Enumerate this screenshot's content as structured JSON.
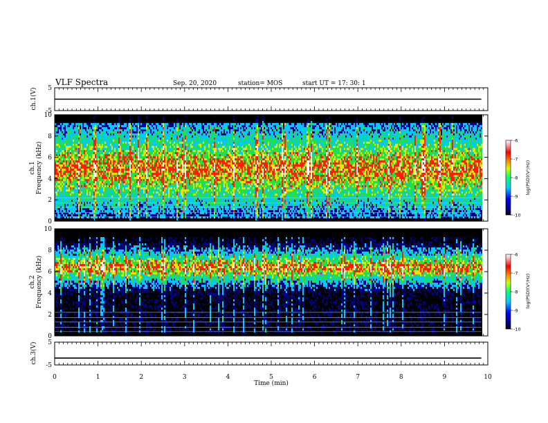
{
  "header": {
    "title": "VLF Spectra",
    "date": "Sep. 20, 2020",
    "station": "station= MOS",
    "start_ut": "start  UT  =   17: 30: 1"
  },
  "colors": {
    "spectrum_low": "#00008c",
    "spectrum_mid": "#00c8ff",
    "spectrum_green": "#22e046",
    "spectrum_high": "#ff1e00",
    "spectrum_peak": "#ffffff"
  },
  "chart_data": [
    {
      "type": "line",
      "name": "ch1-waveform",
      "ylabel": "ch.1(V)",
      "ylim": [
        -5,
        5
      ],
      "yticks": [
        "5",
        "-5"
      ],
      "xlim": [
        0,
        10
      ],
      "x": [
        0,
        9.85
      ],
      "y": [
        0,
        0
      ]
    },
    {
      "type": "heatmap",
      "name": "ch1-spectrogram",
      "ylabel": "ch.1",
      "ylabel2": "Frequency  (kHz)",
      "ylim": [
        0,
        10
      ],
      "yticks": [
        "0",
        "2",
        "4",
        "6",
        "8",
        "10"
      ],
      "xlim": [
        0,
        10
      ],
      "data_extent_min": 9.85,
      "dominant_band_khz": [
        1,
        9
      ],
      "colorbar": {
        "range": [
          -10,
          -6
        ],
        "ticks": [
          "-6",
          "-7",
          "-8",
          "-9",
          "-10"
        ],
        "label": "log(PSD)(V²/Hz)"
      }
    },
    {
      "type": "heatmap",
      "name": "ch2-spectrogram",
      "ylabel": "ch.2",
      "ylabel2": "Frequency  (kHz)",
      "ylim": [
        0,
        10
      ],
      "yticks": [
        "0",
        "2",
        "4",
        "6",
        "8",
        "10"
      ],
      "xlim": [
        0,
        10
      ],
      "data_extent_min": 9.85,
      "dominant_band_khz": [
        5,
        8
      ],
      "colorbar": {
        "range": [
          -10,
          -6
        ],
        "ticks": [
          "-6",
          "-7",
          "-8",
          "-9",
          "-10"
        ],
        "label": "log(PSD)(V²/Hz)"
      }
    },
    {
      "type": "line",
      "name": "ch3-waveform",
      "ylabel": "ch.3(V)",
      "ylim": [
        -5,
        5
      ],
      "yticks": [
        "5",
        "-5"
      ],
      "xlim": [
        0,
        10
      ],
      "x": [
        0,
        9.85
      ],
      "y": [
        -2,
        -2
      ]
    }
  ],
  "xaxis": {
    "label": "Time  (min)",
    "ticks": [
      "0",
      "1",
      "2",
      "3",
      "4",
      "5",
      "6",
      "7",
      "8",
      "9",
      "10"
    ]
  }
}
